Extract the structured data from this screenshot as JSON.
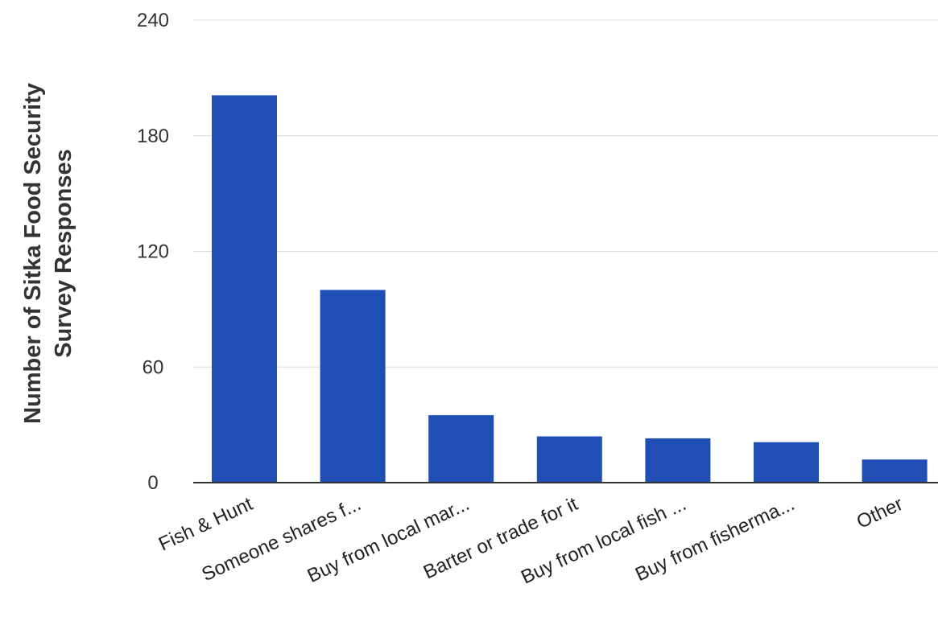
{
  "chart_data": {
    "type": "bar",
    "title": "",
    "xlabel": "",
    "ylabel_lines": [
      "Number of Sitka Food Security",
      "Survey Responses"
    ],
    "categories": [
      "Fish & Hunt",
      "Someone shares f...",
      "Buy from local mar...",
      "Barter or trade for it",
      "Buy from local fish ...",
      "Buy from fisherma...",
      "Other"
    ],
    "values": [
      201,
      100,
      35,
      24,
      23,
      21,
      12
    ],
    "ylim": [
      0,
      240
    ],
    "yticks": [
      0,
      60,
      120,
      180,
      240
    ],
    "grid": true,
    "legend": "none",
    "colors": {
      "bar": "#1f4fb4",
      "grid": "#dcdcdc",
      "axis": "#333333"
    }
  }
}
